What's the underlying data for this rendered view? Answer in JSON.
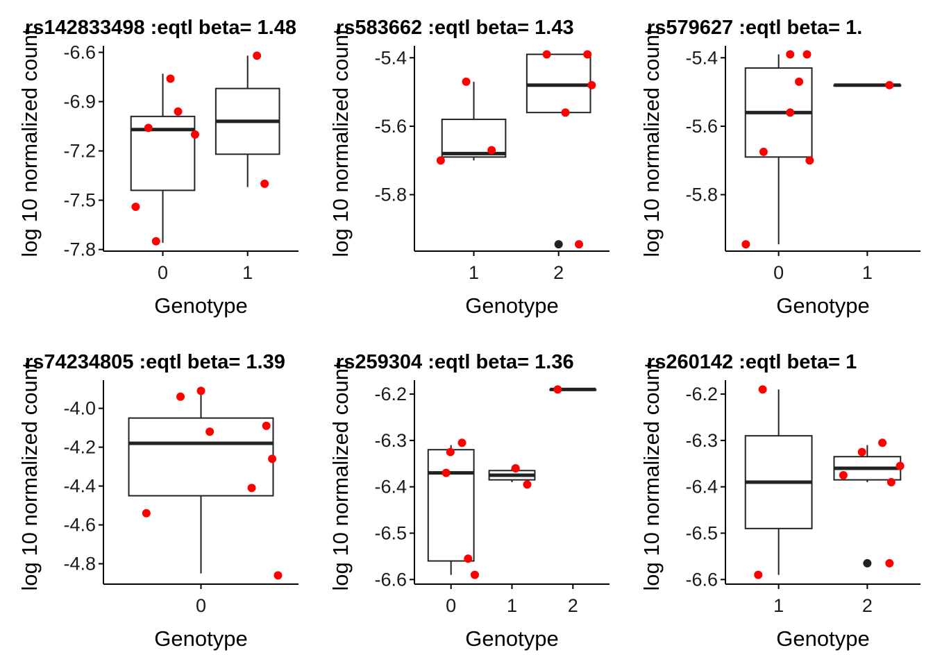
{
  "chart_data": [
    {
      "type": "box",
      "title": "rs142833498 :eqtl beta= 1.48",
      "xlabel": "Genotype",
      "ylabel": "log 10 normalized count",
      "x_ticks": [
        "0",
        "1"
      ],
      "y_ticks": [
        -6.6,
        -6.9,
        -7.2,
        -7.5,
        -7.8
      ],
      "xlim": [
        -0.7,
        1.6
      ],
      "ylim": [
        -7.81,
        -6.56
      ],
      "boxes": [
        {
          "x": 0,
          "q1": -7.44,
          "median": -7.07,
          "q3": -6.99,
          "whisker_low": -7.76,
          "whisker_high": -6.73
        },
        {
          "x": 1,
          "q1": -7.22,
          "median": -7.02,
          "q3": -6.82,
          "whisker_low": -7.42,
          "whisker_high": -6.62
        }
      ],
      "outliers": [],
      "points": [
        {
          "x": -0.32,
          "y": -7.54
        },
        {
          "x": -0.17,
          "y": -7.06
        },
        {
          "x": -0.08,
          "y": -7.75
        },
        {
          "x": 0.09,
          "y": -6.76
        },
        {
          "x": 0.18,
          "y": -6.96
        },
        {
          "x": 0.38,
          "y": -7.1
        },
        {
          "x": 1.11,
          "y": -6.62
        },
        {
          "x": 1.2,
          "y": -7.4
        }
      ]
    },
    {
      "type": "box",
      "title": "rs583662 :eqtl beta= 1.43",
      "xlabel": "Genotype",
      "ylabel": "log 10 normalized count",
      "x_ticks": [
        "1",
        "2"
      ],
      "y_ticks": [
        -5.4,
        -5.6,
        -5.8
      ],
      "xlim": [
        0.3,
        2.6
      ],
      "ylim": [
        -5.965,
        -5.365
      ],
      "boxes": [
        {
          "x": 1,
          "q1": -5.69,
          "median": -5.68,
          "q3": -5.58,
          "whisker_low": -5.7,
          "whisker_high": -5.47
        },
        {
          "x": 2,
          "q1": -5.56,
          "median": -5.48,
          "q3": -5.39,
          "whisker_low": -5.56,
          "whisker_high": -5.39
        }
      ],
      "outliers": [
        {
          "x": 2,
          "y": -5.945
        }
      ],
      "points": [
        {
          "x": 0.61,
          "y": -5.7
        },
        {
          "x": 0.91,
          "y": -5.47
        },
        {
          "x": 1.21,
          "y": -5.67
        },
        {
          "x": 1.86,
          "y": -5.39
        },
        {
          "x": 2.08,
          "y": -5.56
        },
        {
          "x": 2.24,
          "y": -5.945
        },
        {
          "x": 2.34,
          "y": -5.39
        },
        {
          "x": 2.39,
          "y": -5.48
        }
      ]
    },
    {
      "type": "box",
      "title": "rs579627 :eqtl beta= 1.",
      "xlabel": "Genotype",
      "ylabel": "log 10 normalized count",
      "x_ticks": [
        "0",
        "1"
      ],
      "y_ticks": [
        -5.4,
        -5.6,
        -5.8
      ],
      "xlim": [
        -0.6,
        1.6
      ],
      "ylim": [
        -5.965,
        -5.365
      ],
      "boxes": [
        {
          "x": 0,
          "q1": -5.69,
          "median": -5.56,
          "q3": -5.43,
          "whisker_low": -5.945,
          "whisker_high": -5.39
        },
        {
          "x": 1,
          "q1": -5.48,
          "median": -5.48,
          "q3": -5.48,
          "whisker_low": -5.48,
          "whisker_high": -5.48
        }
      ],
      "outliers": [],
      "points": [
        {
          "x": -0.37,
          "y": -5.945
        },
        {
          "x": -0.17,
          "y": -5.675
        },
        {
          "x": 0.13,
          "y": -5.39
        },
        {
          "x": 0.13,
          "y": -5.56
        },
        {
          "x": 0.23,
          "y": -5.47
        },
        {
          "x": 0.32,
          "y": -5.39
        },
        {
          "x": 0.35,
          "y": -5.7
        },
        {
          "x": 1.25,
          "y": -5.48
        }
      ]
    },
    {
      "type": "box",
      "title": "rs74234805 :eqtl beta= 1.39",
      "xlabel": "Genotype",
      "ylabel": "log 10 normalized count",
      "x_ticks": [
        "0"
      ],
      "y_ticks": [
        -4.0,
        -4.2,
        -4.4,
        -4.6,
        -4.8
      ],
      "xlim": [
        -1.0,
        1.0
      ],
      "ylim": [
        -4.905,
        -3.855
      ],
      "boxes": [
        {
          "x": 0,
          "q1": -4.45,
          "median": -4.18,
          "q3": -4.05,
          "whisker_low": -4.85,
          "whisker_high": -3.91
        }
      ],
      "outliers": [],
      "points": [
        {
          "x": -0.56,
          "y": -4.54
        },
        {
          "x": -0.21,
          "y": -3.94
        },
        {
          "x": 0.0,
          "y": -3.91
        },
        {
          "x": 0.09,
          "y": -4.12
        },
        {
          "x": 0.52,
          "y": -4.41
        },
        {
          "x": 0.67,
          "y": -4.09
        },
        {
          "x": 0.73,
          "y": -4.26
        },
        {
          "x": 0.79,
          "y": -4.86
        }
      ]
    },
    {
      "type": "box",
      "title": "rs259304 :eqtl beta= 1.36",
      "xlabel": "Genotype",
      "ylabel": "log 10 normalized count",
      "x_ticks": [
        "0",
        "1",
        "2"
      ],
      "y_ticks": [
        -6.2,
        -6.3,
        -6.4,
        -6.5,
        -6.6
      ],
      "xlim": [
        -0.6,
        2.6
      ],
      "ylim": [
        -6.61,
        -6.17
      ],
      "boxes": [
        {
          "x": 0,
          "q1": -6.56,
          "median": -6.37,
          "q3": -6.32,
          "whisker_low": -6.59,
          "whisker_high": -6.31
        },
        {
          "x": 1,
          "q1": -6.385,
          "median": -6.375,
          "q3": -6.365,
          "whisker_low": -6.39,
          "whisker_high": -6.36
        },
        {
          "x": 2,
          "q1": -6.19,
          "median": -6.19,
          "q3": -6.19,
          "whisker_low": -6.19,
          "whisker_high": -6.19
        }
      ],
      "outliers": [],
      "points": [
        {
          "x": -0.08,
          "y": -6.37
        },
        {
          "x": -0.01,
          "y": -6.325
        },
        {
          "x": 0.18,
          "y": -6.305
        },
        {
          "x": 0.28,
          "y": -6.555
        },
        {
          "x": 0.39,
          "y": -6.59
        },
        {
          "x": 1.06,
          "y": -6.36
        },
        {
          "x": 1.25,
          "y": -6.395
        },
        {
          "x": 1.75,
          "y": -6.19
        }
      ]
    },
    {
      "type": "box",
      "title": "rs260142 :eqtl beta= 1",
      "xlabel": "Genotype",
      "ylabel": "log 10 normalized count",
      "x_ticks": [
        "1",
        "2"
      ],
      "y_ticks": [
        -6.2,
        -6.3,
        -6.4,
        -6.5,
        -6.6
      ],
      "xlim": [
        0.4,
        2.6
      ],
      "ylim": [
        -6.61,
        -6.17
      ],
      "boxes": [
        {
          "x": 1,
          "q1": -6.49,
          "median": -6.39,
          "q3": -6.29,
          "whisker_low": -6.59,
          "whisker_high": -6.19
        },
        {
          "x": 2,
          "q1": -6.385,
          "median": -6.36,
          "q3": -6.335,
          "whisker_low": -6.39,
          "whisker_high": -6.31
        }
      ],
      "outliers": [
        {
          "x": 2,
          "y": -6.565
        }
      ],
      "points": [
        {
          "x": 0.77,
          "y": -6.59
        },
        {
          "x": 0.82,
          "y": -6.19
        },
        {
          "x": 1.73,
          "y": -6.375
        },
        {
          "x": 1.94,
          "y": -6.325
        },
        {
          "x": 2.17,
          "y": -6.305
        },
        {
          "x": 2.25,
          "y": -6.565
        },
        {
          "x": 2.27,
          "y": -6.39
        },
        {
          "x": 2.37,
          "y": -6.355
        }
      ]
    }
  ]
}
